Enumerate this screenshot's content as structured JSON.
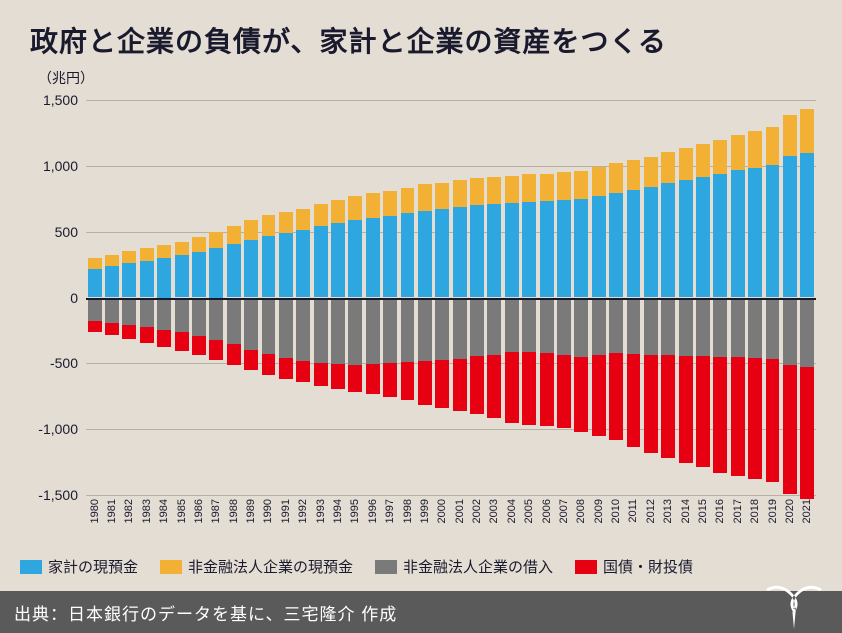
{
  "title": "政府と企業の負債が、家計と企業の資産をつくる",
  "ylabel": "（兆円）",
  "footer": "出典：日本銀行のデータを基に、三宅隆介 作成",
  "chart": {
    "type": "bar",
    "background_color": "#e4ddd3",
    "grid_color": "#b8b0a3",
    "zero_color": "#1a1a2e",
    "bar_width": 0.8,
    "ylim": [
      -1500,
      1500
    ],
    "ytick_step": 500,
    "yticks": [
      -1500,
      -1000,
      -500,
      0,
      500,
      1000,
      1500
    ],
    "ytick_labels": [
      "-1,500",
      "-1,000",
      "-500",
      "0",
      "500",
      "1,000",
      "1,500"
    ],
    "label_fontsize": 14,
    "title_fontsize": 28,
    "tick_fontsize": 14,
    "xtick_fontsize": 11,
    "legend_fontsize": 15,
    "footer_fontsize": 17,
    "years": [
      "1980",
      "1981",
      "1982",
      "1983",
      "1984",
      "1985",
      "1986",
      "1987",
      "1988",
      "1989",
      "1990",
      "1991",
      "1992",
      "1993",
      "1994",
      "1995",
      "1996",
      "1997",
      "1998",
      "1999",
      "2000",
      "2001",
      "2002",
      "2003",
      "2004",
      "2005",
      "2006",
      "2007",
      "2008",
      "2009",
      "2010",
      "2011",
      "2012",
      "2013",
      "2014",
      "2015",
      "2016",
      "2017",
      "2018",
      "2019",
      "2020",
      "2021"
    ],
    "series": [
      {
        "key": "household_cash",
        "label": "家計の現預金",
        "color": "#2ea7e0",
        "sign": 1,
        "values": [
          220,
          240,
          260,
          280,
          300,
          320,
          345,
          375,
          410,
          440,
          470,
          490,
          510,
          540,
          565,
          590,
          605,
          620,
          640,
          660,
          670,
          686,
          700,
          710,
          715,
          725,
          730,
          740,
          745,
          770,
          795,
          820,
          840,
          870,
          895,
          915,
          940,
          965,
          985,
          1005,
          1075,
          1100
        ]
      },
      {
        "key": "corp_cash",
        "label": "非金融法人企業の現預金",
        "color": "#f2b035",
        "sign": 1,
        "values": [
          80,
          85,
          90,
          95,
          100,
          105,
          115,
          125,
          135,
          145,
          155,
          160,
          165,
          170,
          175,
          180,
          185,
          190,
          195,
          200,
          202,
          204,
          206,
          208,
          208,
          210,
          210,
          212,
          214,
          220,
          225,
          228,
          230,
          235,
          240,
          250,
          260,
          270,
          280,
          290,
          310,
          330
        ]
      },
      {
        "key": "corp_borrow",
        "label": "非金融法人企業の借入",
        "color": "#7a7a7a",
        "sign": -1,
        "values": [
          180,
          195,
          210,
          225,
          245,
          265,
          290,
          320,
          355,
          395,
          430,
          460,
          480,
          495,
          505,
          510,
          505,
          500,
          490,
          485,
          475,
          465,
          448,
          434,
          415,
          415,
          420,
          435,
          455,
          440,
          425,
          430,
          435,
          440,
          445,
          445,
          450,
          455,
          460,
          470,
          510,
          530
        ]
      },
      {
        "key": "gov_bonds",
        "label": "国債・財投債",
        "color": "#e60012",
        "sign": -1,
        "values": [
          80,
          92,
          105,
          118,
          130,
          142,
          150,
          153,
          155,
          156,
          158,
          160,
          165,
          175,
          190,
          210,
          230,
          255,
          290,
          330,
          365,
          400,
          440,
          485,
          540,
          555,
          558,
          560,
          565,
          610,
          660,
          705,
          745,
          780,
          812,
          845,
          880,
          900,
          915,
          930,
          980,
          1000
        ]
      }
    ]
  },
  "legend": [
    {
      "color": "#2ea7e0",
      "label": "家計の現預金"
    },
    {
      "color": "#f2b035",
      "label": "非金融法人企業の現預金"
    },
    {
      "color": "#7a7a7a",
      "label": "非金融法人企業の借入"
    },
    {
      "color": "#e60012",
      "label": "国債・財投債"
    }
  ],
  "logo_color": "#ffffff"
}
